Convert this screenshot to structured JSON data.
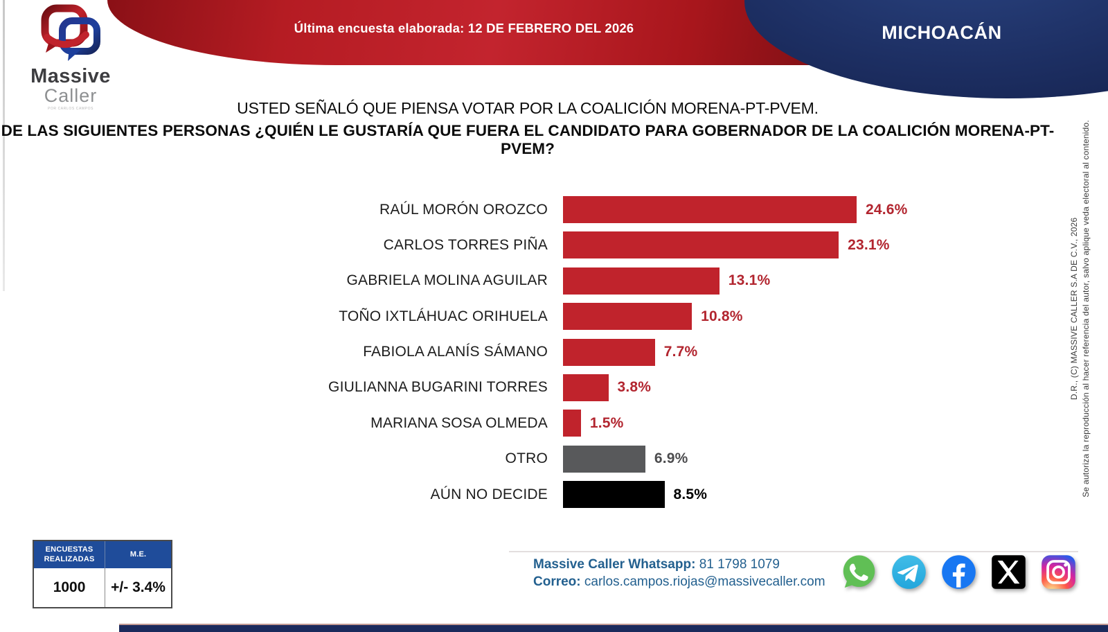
{
  "header": {
    "banner_date": "Última encuesta elaborada: 12 DE FEBRERO DEL 2026",
    "state_label": "MICHOACÁN"
  },
  "logo": {
    "name_line1": "Massive",
    "name_line2": "Caller",
    "tagline": "POR CARLOS CAMPOS",
    "icon": "massive-caller-chat-bubbles-logo"
  },
  "title": {
    "line1": "USTED SEÑALÓ QUE PIENSA VOTAR POR LA COALICIÓN MORENA-PT-PVEM.",
    "line2": "DE LAS SIGUIENTES PERSONAS ¿QUIÉN LE GUSTARÍA QUE FUERA EL CANDIDATO PARA GOBERNADOR DE LA COALICIÓN MORENA-PT-PVEM?"
  },
  "chart_data": {
    "type": "bar",
    "orientation": "horizontal",
    "title": "DE LAS SIGUIENTES PERSONAS ¿QUIÉN LE GUSTARÍA QUE FUERA EL CANDIDATO PARA GOBERNADOR DE LA COALICIÓN MORENA-PT-PVEM?",
    "subtitle": "USTED SEÑALÓ QUE PIENSA VOTAR POR LA COALICIÓN MORENA-PT-PVEM.",
    "categories": [
      "RAÚL MORÓN OROZCO",
      "CARLOS TORRES PIÑA",
      "GABRIELA MOLINA AGUILAR",
      "TOÑO IXTLÁHUAC ORIHUELA",
      "FABIOLA ALANÍS SÁMANO",
      "GIULIANNA BUGARINI TORRES",
      "MARIANA SOSA OLMEDA",
      "OTRO",
      "AÚN NO DECIDE"
    ],
    "values": [
      24.6,
      23.1,
      13.1,
      10.8,
      7.7,
      3.8,
      1.5,
      6.9,
      8.5
    ],
    "value_labels": [
      "24.6%",
      "23.1%",
      "13.1%",
      "10.8%",
      "7.7%",
      "3.8%",
      "1.5%",
      "6.9%",
      "8.5%"
    ],
    "bar_colors": [
      "#c0232c",
      "#c0232c",
      "#c0232c",
      "#c0232c",
      "#c0232c",
      "#c0232c",
      "#c0232c",
      "#58595b",
      "#000000"
    ],
    "value_text_colors": [
      "#b2252f",
      "#b2252f",
      "#b2252f",
      "#b2252f",
      "#b2252f",
      "#b2252f",
      "#b2252f",
      "#4c4c4e",
      "#000000"
    ],
    "xlim": [
      0,
      26
    ],
    "grid": false,
    "legend": false,
    "data_labels": "outside-end"
  },
  "footer": {
    "table": {
      "header1": "ENCUESTAS REALIZADAS",
      "header2": "M.E.",
      "value1": "1000",
      "value2": "+/- 3.4%",
      "header_bg": "#1f4c9a"
    },
    "whatsapp_label": "Massive Caller Whatsapp:",
    "whatsapp_value": " 81 1798 1079",
    "email_label": "Correo:",
    "email_value": " carlos.campos.riojas@massivecaller.com",
    "social_icons": [
      "whatsapp-icon",
      "telegram-icon",
      "facebook-icon",
      "x-icon",
      "instagram-icon"
    ]
  },
  "copyright": {
    "line1": "D.R., (C) MASSIVE CALLER S.A DE C.V., 2026",
    "line2": "Se autoriza la reproducción al hacer referencia del autor, salvo aplique veda electoral al contenido."
  },
  "colors": {
    "banner_red": "#c3242e",
    "banner_navy": "#1d2f63",
    "bar_red": "#c0232c",
    "bar_gray": "#58595b",
    "bar_black": "#000000",
    "contact_blue": "#23608f",
    "table_header_blue": "#1f4c9a"
  }
}
